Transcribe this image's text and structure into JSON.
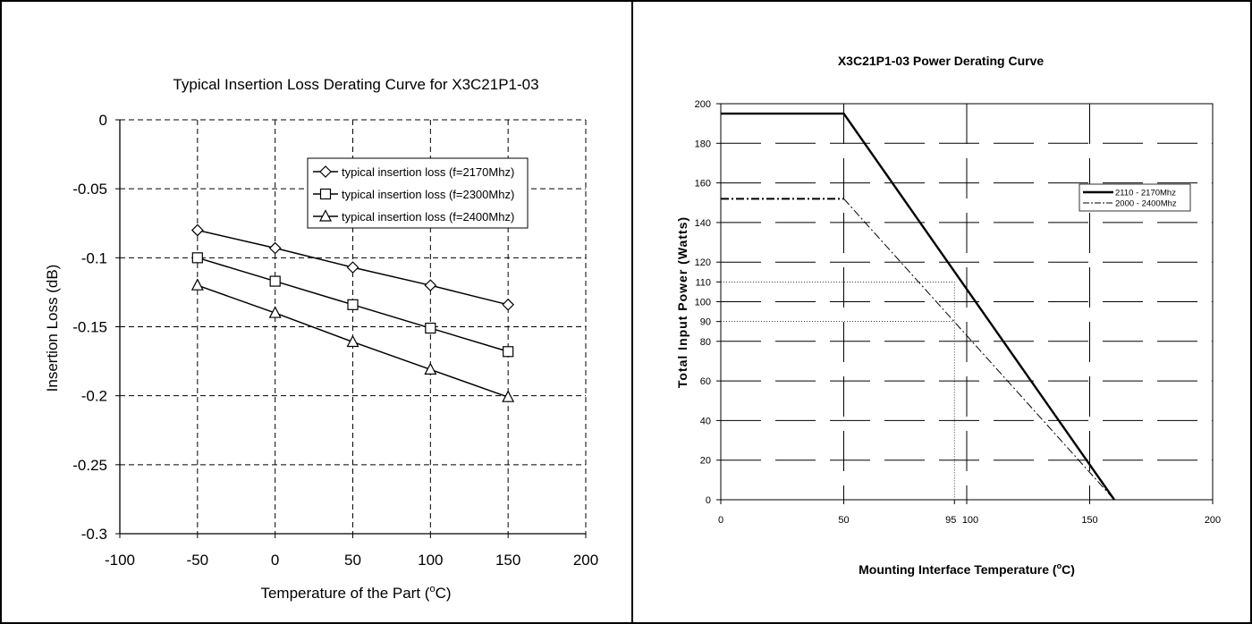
{
  "chart_data": [
    {
      "type": "line",
      "title": "Typical Insertion Loss Derating Curve for X3C21P1-03",
      "xlabel_main": "Temperature of the Part (",
      "xlabel_sup": "o",
      "xlabel_tail": "C)",
      "ylabel": "Insertion Loss (dB)",
      "xlim": [
        -100,
        200
      ],
      "ylim": [
        -0.3,
        0
      ],
      "x_ticks": [
        -100,
        -50,
        0,
        50,
        100,
        150,
        200
      ],
      "x_tick_labels": [
        "-100",
        "-50",
        "0",
        "50",
        "100",
        "150",
        "200"
      ],
      "y_ticks": [
        0,
        -0.05,
        -0.1,
        -0.15,
        -0.2,
        -0.25,
        -0.3
      ],
      "y_tick_labels": [
        "0",
        "-0.05",
        "-0.1",
        "-0.15",
        "-0.2",
        "-0.25",
        "-0.3"
      ],
      "grid": "dashed",
      "legend_position": "top-right",
      "x": [
        -50,
        0,
        50,
        100,
        150
      ],
      "series": [
        {
          "name": "typical insertion loss (f=2170Mhz)",
          "marker": "diamond",
          "values": [
            -0.08,
            -0.093,
            -0.107,
            -0.12,
            -0.134
          ]
        },
        {
          "name": "typical insertion loss (f=2300Mhz)",
          "marker": "square",
          "values": [
            -0.1,
            -0.117,
            -0.134,
            -0.151,
            -0.168
          ]
        },
        {
          "name": "typical insertion loss (f=2400Mhz)",
          "marker": "triangle",
          "values": [
            -0.12,
            -0.14,
            -0.161,
            -0.181,
            -0.201
          ]
        }
      ]
    },
    {
      "type": "line",
      "title": "X3C21P1-03 Power Derating Curve",
      "xlabel_main": "Mounting Interface Temperature (",
      "xlabel_sup": "o",
      "xlabel_tail": "C)",
      "ylabel": "Total Input Power (Watts)",
      "xlim": [
        0,
        200
      ],
      "ylim": [
        0,
        200
      ],
      "x_ticks": [
        0,
        50,
        95,
        100,
        150,
        200
      ],
      "x_tick_labels": [
        "0",
        "50",
        "95",
        "100",
        "150",
        "200"
      ],
      "y_ticks": [
        0,
        20,
        40,
        60,
        80,
        90,
        100,
        110,
        120,
        140,
        160,
        180,
        200
      ],
      "y_tick_labels": [
        "0",
        "20",
        "40",
        "60",
        "80",
        "90",
        "100",
        "110",
        "120",
        "140",
        "160",
        "180",
        "200"
      ],
      "grid": "long-dash",
      "legend_position": "right",
      "series": [
        {
          "name": "2110 - 2170Mhz",
          "style": "solid-thick",
          "points": [
            [
              0,
              195
            ],
            [
              50,
              195
            ],
            [
              160,
              0
            ]
          ]
        },
        {
          "name": "2000 - 2400Mhz",
          "style": "dash-dot",
          "points": [
            [
              0,
              152
            ],
            [
              50,
              152
            ],
            [
              160,
              0
            ]
          ]
        }
      ],
      "reference_lines": [
        {
          "y": 110,
          "x_end": 95
        },
        {
          "y": 90,
          "x_end": 95
        },
        {
          "x": 95,
          "y_end": 110
        }
      ]
    }
  ]
}
